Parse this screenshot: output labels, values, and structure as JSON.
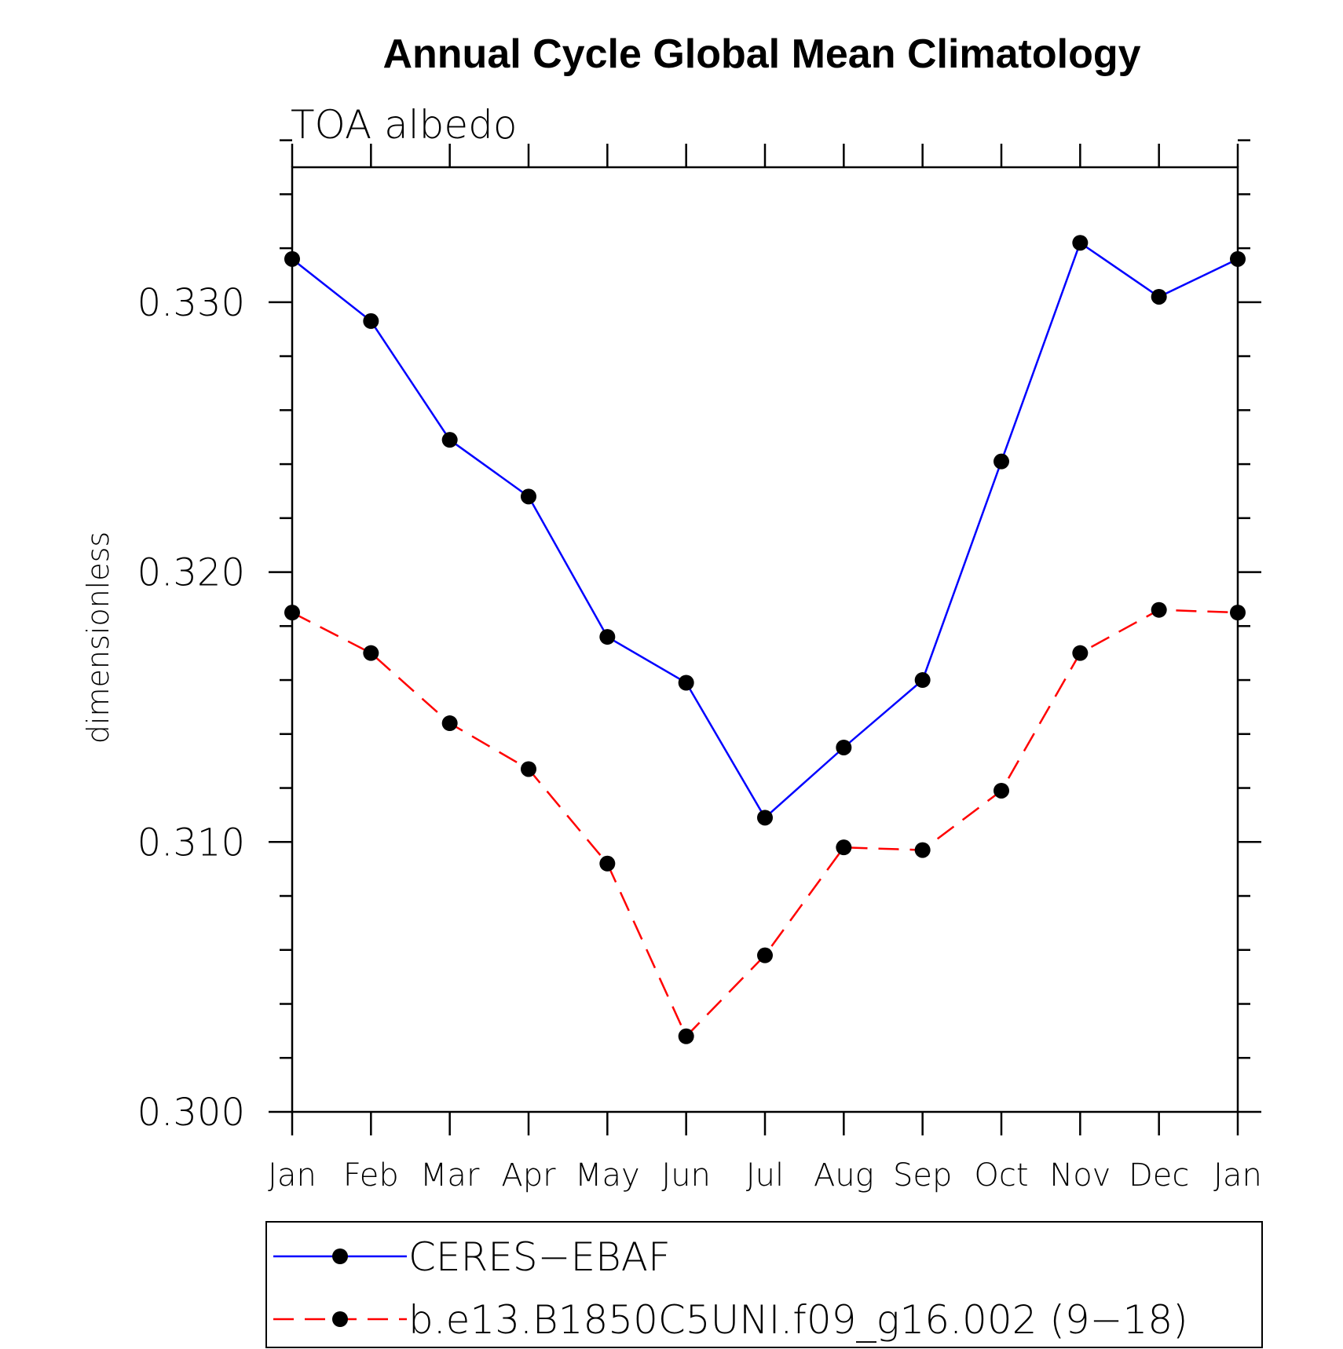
{
  "chart_data": {
    "type": "line",
    "title": "Annual Cycle Global Mean Climatology",
    "subtitle": "TOA albedo",
    "xlabel": "",
    "ylabel": "dimensionless",
    "categories": [
      "Jan",
      "Feb",
      "Mar",
      "Apr",
      "May",
      "Jun",
      "Jul",
      "Aug",
      "Sep",
      "Oct",
      "Nov",
      "Dec",
      "Jan"
    ],
    "ylim": [
      0.3,
      0.335
    ],
    "yticks": [
      "0.300",
      "0.310",
      "0.320",
      "0.330"
    ],
    "ytick_values": [
      0.3,
      0.31,
      0.32,
      0.33
    ],
    "grid": false,
    "legend_position": "bottom",
    "series": [
      {
        "name": "CERES−EBAF",
        "color": "#0000ff",
        "dash": "solid",
        "values": [
          0.3316,
          0.3293,
          0.3249,
          0.3228,
          0.3176,
          0.3159,
          0.3109,
          0.3135,
          0.316,
          0.3241,
          0.3322,
          0.3302,
          0.3316
        ]
      },
      {
        "name": "b.e13.B1850C5UNI.f09_g16.002 (9−18)",
        "color": "#ff0000",
        "dash": "dashed",
        "values": [
          0.3185,
          0.317,
          0.3144,
          0.3127,
          0.3092,
          0.3028,
          0.3058,
          0.3098,
          0.3097,
          0.3119,
          0.317,
          0.3186,
          0.3185
        ]
      }
    ]
  }
}
